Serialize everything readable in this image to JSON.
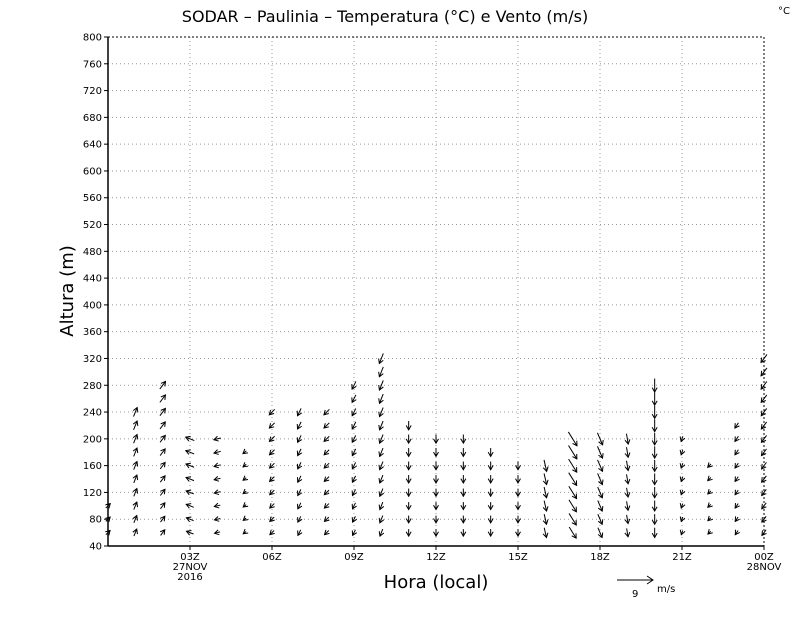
{
  "title": "SODAR – Paulinia – Temperatura (°C) e Vento (m/s)",
  "corner_unit": "°C",
  "ylabel": "Altura (m)",
  "xlabel": "Hora (local)",
  "reference_vector": {
    "magnitude": "9",
    "unit": "m/s"
  },
  "chart_data": {
    "type": "vector_field",
    "title": "SODAR – Paulinia – Temperatura (°C) e Vento (m/s)",
    "xlabel": "Hora (local)",
    "ylabel": "Altura (m)",
    "ylim": [
      40,
      800
    ],
    "yticks": [
      40,
      80,
      120,
      160,
      200,
      240,
      280,
      320,
      360,
      400,
      440,
      480,
      520,
      560,
      600,
      640,
      680,
      720,
      760,
      800
    ],
    "xlim_hours": [
      0,
      24
    ],
    "xticks": [
      {
        "hour": 3,
        "lines": [
          "03Z",
          "27NOV",
          "2016"
        ]
      },
      {
        "hour": 6,
        "lines": [
          "06Z"
        ]
      },
      {
        "hour": 9,
        "lines": [
          "09Z"
        ]
      },
      {
        "hour": 12,
        "lines": [
          "12Z"
        ]
      },
      {
        "hour": 15,
        "lines": [
          "15Z"
        ]
      },
      {
        "hour": 18,
        "lines": [
          "18Z"
        ]
      },
      {
        "hour": 21,
        "lines": [
          "21Z"
        ]
      },
      {
        "hour": 24,
        "lines": [
          "00Z",
          "28NOV"
        ]
      }
    ],
    "grid": true,
    "heights": [
      60,
      80,
      100,
      120,
      140,
      160,
      180,
      200,
      220,
      240,
      260,
      280,
      300,
      320
    ],
    "vector_units": "m/s",
    "reference_speed": 9,
    "profiles": [
      {
        "hour": 0,
        "top": 100,
        "u": 1.5,
        "v": 1.5
      },
      {
        "hour": 1,
        "top": 240,
        "u": 1.0,
        "v": 2.5
      },
      {
        "hour": 2,
        "top": 280,
        "u": 1.5,
        "v": 2.0
      },
      {
        "hour": 3,
        "top": 200,
        "u": -2.5,
        "v": 1.0
      },
      {
        "hour": 4,
        "top": 200,
        "u": -2.0,
        "v": -0.5
      },
      {
        "hour": 5,
        "top": 180,
        "u": -1.0,
        "v": -0.8
      },
      {
        "hour": 6,
        "top": 240,
        "u": -1.5,
        "v": -1.5
      },
      {
        "hour": 7,
        "top": 240,
        "u": -1.0,
        "v": -2.0
      },
      {
        "hour": 8,
        "top": 240,
        "u": -1.5,
        "v": -1.5
      },
      {
        "hour": 9,
        "top": 280,
        "u": -1.0,
        "v": -2.0
      },
      {
        "hour": 10,
        "top": 320,
        "u": -1.0,
        "v": -2.5
      },
      {
        "hour": 11,
        "top": 220,
        "u": 0.0,
        "v": -2.5
      },
      {
        "hour": 12,
        "top": 200,
        "u": 0.0,
        "v": -2.5
      },
      {
        "hour": 13,
        "top": 200,
        "u": 0.0,
        "v": -2.5
      },
      {
        "hour": 14,
        "top": 180,
        "u": 0.0,
        "v": -2.5
      },
      {
        "hour": 15,
        "top": 160,
        "u": 0.0,
        "v": -2.5
      },
      {
        "hour": 16,
        "top": 160,
        "u": 0.8,
        "v": -3.5
      },
      {
        "hour": 17,
        "top": 200,
        "u": 2.5,
        "v": -4.0
      },
      {
        "hour": 18,
        "top": 200,
        "u": 1.5,
        "v": -3.5
      },
      {
        "hour": 19,
        "top": 200,
        "u": 0.5,
        "v": -3.0
      },
      {
        "hour": 20,
        "top": 280,
        "u": 0.0,
        "v": -3.5
      },
      {
        "hour": 21,
        "top": 200,
        "u": -0.5,
        "v": -1.5
      },
      {
        "hour": 22,
        "top": 160,
        "u": -1.0,
        "v": -1.0
      },
      {
        "hour": 23,
        "top": 220,
        "u": -1.0,
        "v": -1.5
      },
      {
        "hour": 24,
        "top": 320,
        "u": -1.5,
        "v": -2.0
      }
    ]
  }
}
